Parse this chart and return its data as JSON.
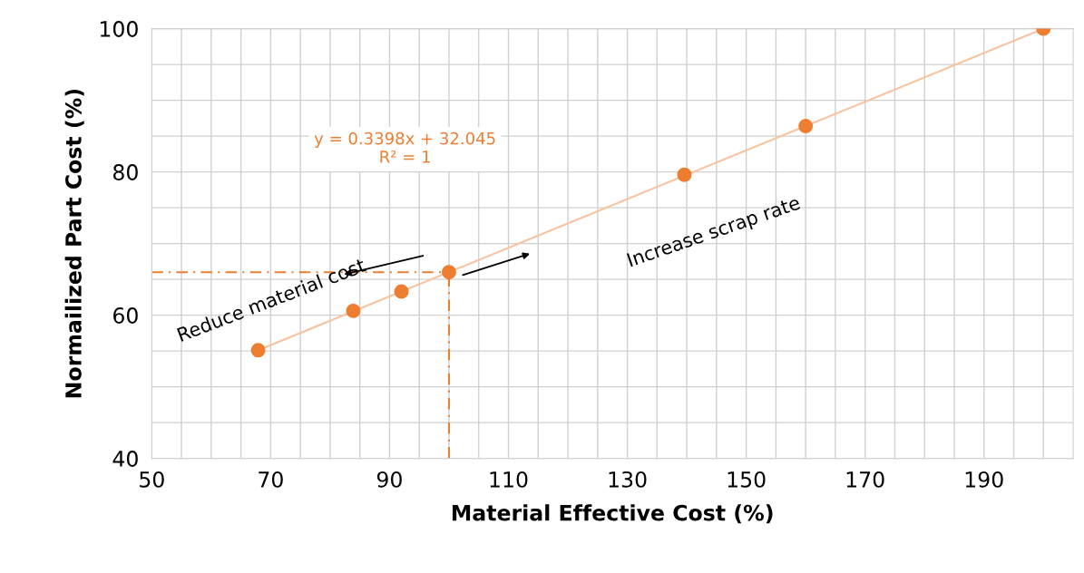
{
  "chart_data": {
    "type": "scatter",
    "xlabel": "Material Effective Cost (%)",
    "ylabel": "Normailized Part Cost (%)",
    "xlim": [
      50,
      205
    ],
    "ylim": [
      40,
      100
    ],
    "xticks": [
      50,
      {
        "value": 55,
        "label": null
      },
      {
        "value": 60,
        "label": null
      },
      {
        "value": 65,
        "label": null
      },
      70,
      {
        "value": 75,
        "label": null
      },
      {
        "value": 80,
        "label": null
      },
      {
        "value": 85,
        "label": null
      },
      90,
      {
        "value": 95,
        "label": null
      },
      {
        "value": 100,
        "label": null
      },
      {
        "value": 105,
        "label": null
      },
      110,
      {
        "value": 115,
        "label": null
      },
      {
        "value": 120,
        "label": null
      },
      {
        "value": 125,
        "label": null
      },
      130,
      {
        "value": 135,
        "label": null
      },
      {
        "value": 140,
        "label": null
      },
      {
        "value": 145,
        "label": null
      },
      150,
      {
        "value": 155,
        "label": null
      },
      {
        "value": 160,
        "label": null
      },
      {
        "value": 165,
        "label": null
      },
      170,
      {
        "value": 175,
        "label": null
      },
      {
        "value": 180,
        "label": null
      },
      {
        "value": 185,
        "label": null
      },
      190,
      {
        "value": 195,
        "label": null
      },
      {
        "value": 200,
        "label": null
      }
    ],
    "yticks": [
      40,
      {
        "value": 45,
        "label": null
      },
      {
        "value": 50,
        "label": null
      },
      {
        "value": 55,
        "label": null
      },
      60,
      {
        "value": 65,
        "label": null
      },
      {
        "value": 70,
        "label": null
      },
      {
        "value": 75,
        "label": null
      },
      80,
      {
        "value": 85,
        "label": null
      },
      {
        "value": 90,
        "label": null
      },
      {
        "value": 95,
        "label": null
      },
      100
    ],
    "grid": true,
    "legend": false,
    "series": [
      {
        "type": "line",
        "color": "#f8c3a0",
        "line_style": "solid",
        "marker": "none",
        "x": [
          67.9,
          200
        ],
        "values": [
          55.1,
          100
        ]
      },
      {
        "type": "line",
        "color": "#ed7d31",
        "line_style": "dashed",
        "marker": "none",
        "x": [
          50,
          100
        ],
        "values": [
          66,
          66
        ]
      },
      {
        "type": "line",
        "color": "#ed7d31",
        "line_style": "dashed",
        "marker": "none",
        "x": [
          100,
          100
        ],
        "values": [
          40,
          66
        ]
      },
      {
        "color": "#ed7d31",
        "marker": "circle",
        "x": [
          67.9,
          83.9,
          92,
          100,
          139.6,
          160,
          200
        ],
        "values": [
          55.1,
          60.6,
          63.3,
          66,
          79.6,
          86.4,
          100
        ]
      }
    ],
    "annotations": [
      "y = 0.3398x + 32.045\nR² = 1",
      "Reduce material cost",
      "Increase scrap rate"
    ]
  }
}
